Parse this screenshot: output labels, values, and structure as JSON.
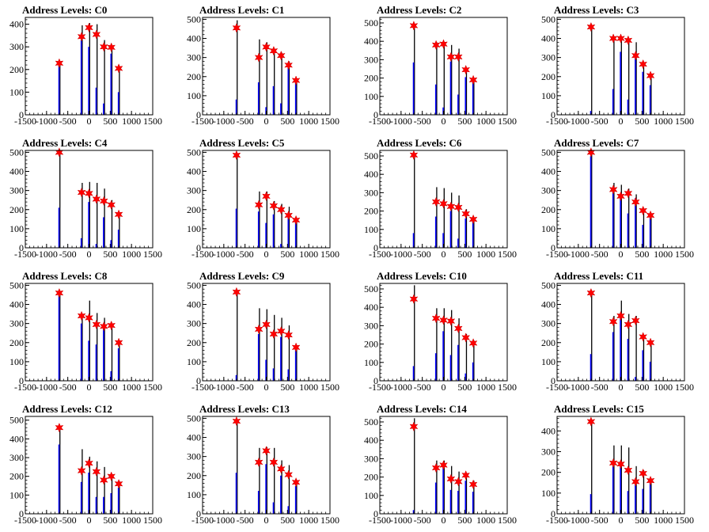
{
  "colors": {
    "histogram": "#0000ff",
    "spike": "#000000",
    "star": "#ff0000",
    "frame": "#000000"
  },
  "chart_data": [
    {
      "type": "bar",
      "title": "Address Levels: C0",
      "xlim": [
        -1500,
        1500
      ],
      "ylim": [
        0,
        430
      ],
      "xticks": [
        "-1500",
        "-1000",
        "-500",
        "0",
        "500",
        "1000",
        "1500"
      ],
      "yticks": [
        0,
        100,
        200,
        300,
        400
      ],
      "peaks": [
        {
          "x": -700,
          "blue": 225,
          "black": 225,
          "star": 228
        },
        {
          "x": -175,
          "blue": 330,
          "black": 395,
          "star": 345
        },
        {
          "x": 0,
          "blue": 300,
          "black": 405,
          "star": 385
        },
        {
          "x": 175,
          "blue": 120,
          "black": 400,
          "star": 355
        },
        {
          "x": 350,
          "blue": 50,
          "black": 330,
          "star": 300
        },
        {
          "x": 525,
          "blue": 270,
          "black": 300,
          "star": 298
        },
        {
          "x": 700,
          "blue": 100,
          "black": 200,
          "star": 205
        }
      ]
    },
    {
      "type": "bar",
      "title": "Address Levels: C1",
      "xlim": [
        -1500,
        1500
      ],
      "ylim": [
        0,
        510
      ],
      "xticks": [
        "-1500",
        "-1000",
        "-500",
        "0",
        "500",
        "1000",
        "1500"
      ],
      "yticks": [
        0,
        100,
        200,
        300,
        400,
        500
      ],
      "peaks": [
        {
          "x": -700,
          "blue": 80,
          "black": 495,
          "star": 455
        },
        {
          "x": -175,
          "blue": 170,
          "black": 395,
          "star": 300
        },
        {
          "x": 0,
          "blue": 40,
          "black": 380,
          "star": 355
        },
        {
          "x": 175,
          "blue": 150,
          "black": 340,
          "star": 335
        },
        {
          "x": 350,
          "blue": 60,
          "black": 325,
          "star": 310
        },
        {
          "x": 525,
          "blue": 260,
          "black": 280,
          "star": 260
        },
        {
          "x": 700,
          "blue": 170,
          "black": 180,
          "star": 180
        }
      ]
    },
    {
      "type": "bar",
      "title": "Address Levels: C2",
      "xlim": [
        -1500,
        1500
      ],
      "ylim": [
        0,
        530
      ],
      "xticks": [
        "-1500",
        "-1000",
        "-500",
        "0",
        "500",
        "1000",
        "1500"
      ],
      "yticks": [
        0,
        100,
        200,
        300,
        400,
        500
      ],
      "peaks": [
        {
          "x": -700,
          "blue": 285,
          "black": 490,
          "star": 485
        },
        {
          "x": -175,
          "blue": 165,
          "black": 395,
          "star": 380
        },
        {
          "x": 0,
          "blue": 40,
          "black": 390,
          "star": 385
        },
        {
          "x": 175,
          "blue": 290,
          "black": 380,
          "star": 315
        },
        {
          "x": 350,
          "blue": 110,
          "black": 360,
          "star": 315
        },
        {
          "x": 525,
          "blue": 205,
          "black": 250,
          "star": 245
        },
        {
          "x": 700,
          "blue": 180,
          "black": 195,
          "star": 190
        }
      ]
    },
    {
      "type": "bar",
      "title": "Address Levels: C3",
      "xlim": [
        -1500,
        1500
      ],
      "ylim": [
        0,
        510
      ],
      "xticks": [
        "-1500",
        "-1000",
        "-500",
        "0",
        "500",
        "1000",
        "1500"
      ],
      "yticks": [
        0,
        100,
        200,
        300,
        400,
        500
      ],
      "peaks": [
        {
          "x": -700,
          "blue": 20,
          "black": 460,
          "star": 460
        },
        {
          "x": -175,
          "blue": 135,
          "black": 410,
          "star": 400
        },
        {
          "x": 0,
          "blue": 330,
          "black": 410,
          "star": 400
        },
        {
          "x": 175,
          "blue": 80,
          "black": 395,
          "star": 390
        },
        {
          "x": 350,
          "blue": 300,
          "black": 380,
          "star": 310
        },
        {
          "x": 525,
          "blue": 225,
          "black": 265,
          "star": 265
        },
        {
          "x": 700,
          "blue": 155,
          "black": 210,
          "star": 205
        }
      ]
    },
    {
      "type": "bar",
      "title": "Address Levels: C4",
      "xlim": [
        -1500,
        1500
      ],
      "ylim": [
        0,
        510
      ],
      "xticks": [
        "-1500",
        "-1000",
        "-500",
        "0",
        "500",
        "1000",
        "1500"
      ],
      "yticks": [
        0,
        100,
        200,
        300,
        400,
        500
      ],
      "peaks": [
        {
          "x": -700,
          "blue": 210,
          "black": 500,
          "star": 500
        },
        {
          "x": -175,
          "blue": 50,
          "black": 340,
          "star": 290
        },
        {
          "x": 0,
          "blue": 240,
          "black": 345,
          "star": 285
        },
        {
          "x": 175,
          "blue": 20,
          "black": 340,
          "star": 255
        },
        {
          "x": 350,
          "blue": 160,
          "black": 310,
          "star": 245
        },
        {
          "x": 525,
          "blue": 40,
          "black": 250,
          "star": 225
        },
        {
          "x": 700,
          "blue": 95,
          "black": 175,
          "star": 175
        }
      ]
    },
    {
      "type": "bar",
      "title": "Address Levels: C5",
      "xlim": [
        -1500,
        1500
      ],
      "ylim": [
        0,
        510
      ],
      "xticks": [
        "-1500",
        "-1000",
        "-500",
        "0",
        "500",
        "1000",
        "1500"
      ],
      "yticks": [
        0,
        100,
        200,
        300,
        400,
        500
      ],
      "peaks": [
        {
          "x": -700,
          "blue": 205,
          "black": 495,
          "star": 485
        },
        {
          "x": -175,
          "blue": 190,
          "black": 295,
          "star": 225
        },
        {
          "x": 0,
          "blue": 130,
          "black": 295,
          "star": 270
        },
        {
          "x": 175,
          "blue": 175,
          "black": 245,
          "star": 220
        },
        {
          "x": 350,
          "blue": 20,
          "black": 230,
          "star": 200
        },
        {
          "x": 525,
          "blue": 170,
          "black": 215,
          "star": 170
        },
        {
          "x": 700,
          "blue": 145,
          "black": 155,
          "star": 145
        }
      ]
    },
    {
      "type": "bar",
      "title": "Address Levels: C6",
      "xlim": [
        -1500,
        1500
      ],
      "ylim": [
        0,
        530
      ],
      "xticks": [
        "-1500",
        "-1000",
        "-500",
        "0",
        "500",
        "1000",
        "1500"
      ],
      "yticks": [
        0,
        100,
        200,
        300,
        400,
        500
      ],
      "peaks": [
        {
          "x": -700,
          "blue": 80,
          "black": 510,
          "star": 505
        },
        {
          "x": -175,
          "blue": 170,
          "black": 330,
          "star": 250
        },
        {
          "x": 0,
          "blue": 80,
          "black": 325,
          "star": 240
        },
        {
          "x": 175,
          "blue": 200,
          "black": 300,
          "star": 225
        },
        {
          "x": 350,
          "blue": 50,
          "black": 285,
          "star": 220
        },
        {
          "x": 525,
          "blue": 160,
          "black": 210,
          "star": 185
        },
        {
          "x": 700,
          "blue": 150,
          "black": 165,
          "star": 155
        }
      ]
    },
    {
      "type": "bar",
      "title": "Address Levels: C7",
      "xlim": [
        -1500,
        1500
      ],
      "ylim": [
        0,
        510
      ],
      "xticks": [
        "-1500",
        "-1000",
        "-500",
        "0",
        "500",
        "1000",
        "1500"
      ],
      "yticks": [
        0,
        100,
        200,
        300,
        400,
        500
      ],
      "peaks": [
        {
          "x": -700,
          "blue": 480,
          "black": 505,
          "star": 500
        },
        {
          "x": -175,
          "blue": 300,
          "black": 340,
          "star": 305
        },
        {
          "x": 0,
          "blue": 270,
          "black": 330,
          "star": 270
        },
        {
          "x": 175,
          "blue": 180,
          "black": 310,
          "star": 285
        },
        {
          "x": 350,
          "blue": 260,
          "black": 280,
          "star": 240
        },
        {
          "x": 525,
          "blue": 120,
          "black": 205,
          "star": 195
        },
        {
          "x": 700,
          "blue": 160,
          "black": 175,
          "star": 170
        }
      ]
    },
    {
      "type": "bar",
      "title": "Address Levels: C8",
      "xlim": [
        -1500,
        1500
      ],
      "ylim": [
        0,
        510
      ],
      "xticks": [
        "-1500",
        "-1000",
        "-500",
        "0",
        "500",
        "1000",
        "1500"
      ],
      "yticks": [
        0,
        100,
        200,
        300,
        400,
        500
      ],
      "peaks": [
        {
          "x": -700,
          "blue": 455,
          "black": 470,
          "star": 460
        },
        {
          "x": -175,
          "blue": 300,
          "black": 350,
          "star": 340
        },
        {
          "x": 0,
          "blue": 210,
          "black": 420,
          "star": 330
        },
        {
          "x": 175,
          "blue": 190,
          "black": 355,
          "star": 295
        },
        {
          "x": 350,
          "blue": 300,
          "black": 330,
          "star": 285
        },
        {
          "x": 525,
          "blue": 50,
          "black": 295,
          "star": 290
        },
        {
          "x": 700,
          "blue": 170,
          "black": 200,
          "star": 200
        }
      ]
    },
    {
      "type": "bar",
      "title": "Address Levels: C9",
      "xlim": [
        -1500,
        1500
      ],
      "ylim": [
        0,
        510
      ],
      "xticks": [
        "-1500",
        "-1000",
        "-500",
        "0",
        "500",
        "1000",
        "1500"
      ],
      "yticks": [
        0,
        100,
        200,
        300,
        400,
        500
      ],
      "peaks": [
        {
          "x": -700,
          "blue": 30,
          "black": 475,
          "star": 465
        },
        {
          "x": -175,
          "blue": 245,
          "black": 380,
          "star": 270
        },
        {
          "x": 0,
          "blue": 110,
          "black": 375,
          "star": 295
        },
        {
          "x": 175,
          "blue": 65,
          "black": 345,
          "star": 245
        },
        {
          "x": 350,
          "blue": 230,
          "black": 330,
          "star": 260
        },
        {
          "x": 525,
          "blue": 60,
          "black": 290,
          "star": 240
        },
        {
          "x": 700,
          "blue": 165,
          "black": 175,
          "star": 175
        }
      ]
    },
    {
      "type": "bar",
      "title": "Address Levels: C10",
      "xlim": [
        -1500,
        1500
      ],
      "ylim": [
        0,
        530
      ],
      "xticks": [
        "-1500",
        "-1000",
        "-500",
        "0",
        "500",
        "1000",
        "1500"
      ],
      "yticks": [
        0,
        100,
        200,
        300,
        400,
        500
      ],
      "peaks": [
        {
          "x": -700,
          "blue": 80,
          "black": 520,
          "star": 445
        },
        {
          "x": -175,
          "blue": 150,
          "black": 395,
          "star": 340
        },
        {
          "x": 0,
          "blue": 270,
          "black": 395,
          "star": 330
        },
        {
          "x": 175,
          "blue": 140,
          "black": 385,
          "star": 325
        },
        {
          "x": 350,
          "blue": 195,
          "black": 340,
          "star": 285
        },
        {
          "x": 525,
          "blue": 40,
          "black": 255,
          "star": 235
        },
        {
          "x": 700,
          "blue": 100,
          "black": 220,
          "star": 205
        }
      ]
    },
    {
      "type": "bar",
      "title": "Address Levels: C11",
      "xlim": [
        -1500,
        1500
      ],
      "ylim": [
        0,
        510
      ],
      "xticks": [
        "-1500",
        "-1000",
        "-500",
        "0",
        "500",
        "1000",
        "1500"
      ],
      "yticks": [
        0,
        100,
        200,
        300,
        400,
        500
      ],
      "peaks": [
        {
          "x": -700,
          "blue": 140,
          "black": 470,
          "star": 460
        },
        {
          "x": -175,
          "blue": 255,
          "black": 340,
          "star": 310
        },
        {
          "x": 0,
          "blue": 330,
          "black": 420,
          "star": 340
        },
        {
          "x": 175,
          "blue": 220,
          "black": 350,
          "star": 295
        },
        {
          "x": 350,
          "blue": 20,
          "black": 340,
          "star": 315
        },
        {
          "x": 525,
          "blue": 160,
          "black": 235,
          "star": 230
        },
        {
          "x": 700,
          "blue": 100,
          "black": 205,
          "star": 200
        }
      ]
    },
    {
      "type": "bar",
      "title": "Address Levels: C12",
      "xlim": [
        -1500,
        1500
      ],
      "ylim": [
        0,
        520
      ],
      "xticks": [
        "-1500",
        "-1000",
        "-500",
        "0",
        "500",
        "1000",
        "1500"
      ],
      "yticks": [
        0,
        100,
        200,
        300,
        400,
        500
      ],
      "peaks": [
        {
          "x": -700,
          "blue": 370,
          "black": 465,
          "star": 460
        },
        {
          "x": -175,
          "blue": 170,
          "black": 345,
          "star": 230
        },
        {
          "x": 0,
          "blue": 220,
          "black": 305,
          "star": 270
        },
        {
          "x": 175,
          "blue": 90,
          "black": 280,
          "star": 225
        },
        {
          "x": 350,
          "blue": 90,
          "black": 250,
          "star": 180
        },
        {
          "x": 525,
          "blue": 110,
          "black": 210,
          "star": 200
        },
        {
          "x": 700,
          "blue": 140,
          "black": 175,
          "star": 160
        }
      ]
    },
    {
      "type": "bar",
      "title": "Address Levels: C13",
      "xlim": [
        -1500,
        1500
      ],
      "ylim": [
        0,
        510
      ],
      "xticks": [
        "-1500",
        "-1000",
        "-500",
        "0",
        "500",
        "1000",
        "1500"
      ],
      "yticks": [
        0,
        100,
        200,
        300,
        400,
        500
      ],
      "peaks": [
        {
          "x": -700,
          "blue": 215,
          "black": 490,
          "star": 485
        },
        {
          "x": -175,
          "blue": 120,
          "black": 345,
          "star": 270
        },
        {
          "x": 0,
          "blue": 260,
          "black": 350,
          "star": 330
        },
        {
          "x": 175,
          "blue": 60,
          "black": 345,
          "star": 270
        },
        {
          "x": 350,
          "blue": 200,
          "black": 280,
          "star": 235
        },
        {
          "x": 525,
          "blue": 40,
          "black": 255,
          "star": 205
        },
        {
          "x": 700,
          "blue": 145,
          "black": 170,
          "star": 165
        }
      ]
    },
    {
      "type": "bar",
      "title": "Address Levels: C14",
      "xlim": [
        -1500,
        1500
      ],
      "ylim": [
        0,
        530
      ],
      "xticks": [
        "-1500",
        "-1000",
        "-500",
        "0",
        "500",
        "1000",
        "1500"
      ],
      "yticks": [
        0,
        100,
        200,
        300,
        400,
        500
      ],
      "peaks": [
        {
          "x": -700,
          "blue": 20,
          "black": 520,
          "star": 475
        },
        {
          "x": -175,
          "blue": 170,
          "black": 290,
          "star": 250
        },
        {
          "x": 0,
          "blue": 270,
          "black": 290,
          "star": 265
        },
        {
          "x": 175,
          "blue": 130,
          "black": 260,
          "star": 190
        },
        {
          "x": 350,
          "blue": 125,
          "black": 230,
          "star": 175
        },
        {
          "x": 525,
          "blue": 180,
          "black": 215,
          "star": 210
        },
        {
          "x": 700,
          "blue": 120,
          "black": 180,
          "star": 160
        }
      ]
    },
    {
      "type": "bar",
      "title": "Address Levels: C15",
      "xlim": [
        -1500,
        1500
      ],
      "ylim": [
        0,
        470
      ],
      "xticks": [
        "-1500",
        "-1000",
        "-500",
        "0",
        "500",
        "1000",
        "1500"
      ],
      "yticks": [
        0,
        100,
        200,
        300,
        400
      ],
      "peaks": [
        {
          "x": -700,
          "blue": 95,
          "black": 445,
          "star": 445
        },
        {
          "x": -175,
          "blue": 230,
          "black": 330,
          "star": 245
        },
        {
          "x": 0,
          "blue": 250,
          "black": 330,
          "star": 240
        },
        {
          "x": 175,
          "blue": 110,
          "black": 320,
          "star": 210
        },
        {
          "x": 350,
          "blue": 170,
          "black": 230,
          "star": 155
        },
        {
          "x": 525,
          "blue": 120,
          "black": 210,
          "star": 195
        },
        {
          "x": 700,
          "blue": 160,
          "black": 165,
          "star": 160
        }
      ]
    }
  ]
}
